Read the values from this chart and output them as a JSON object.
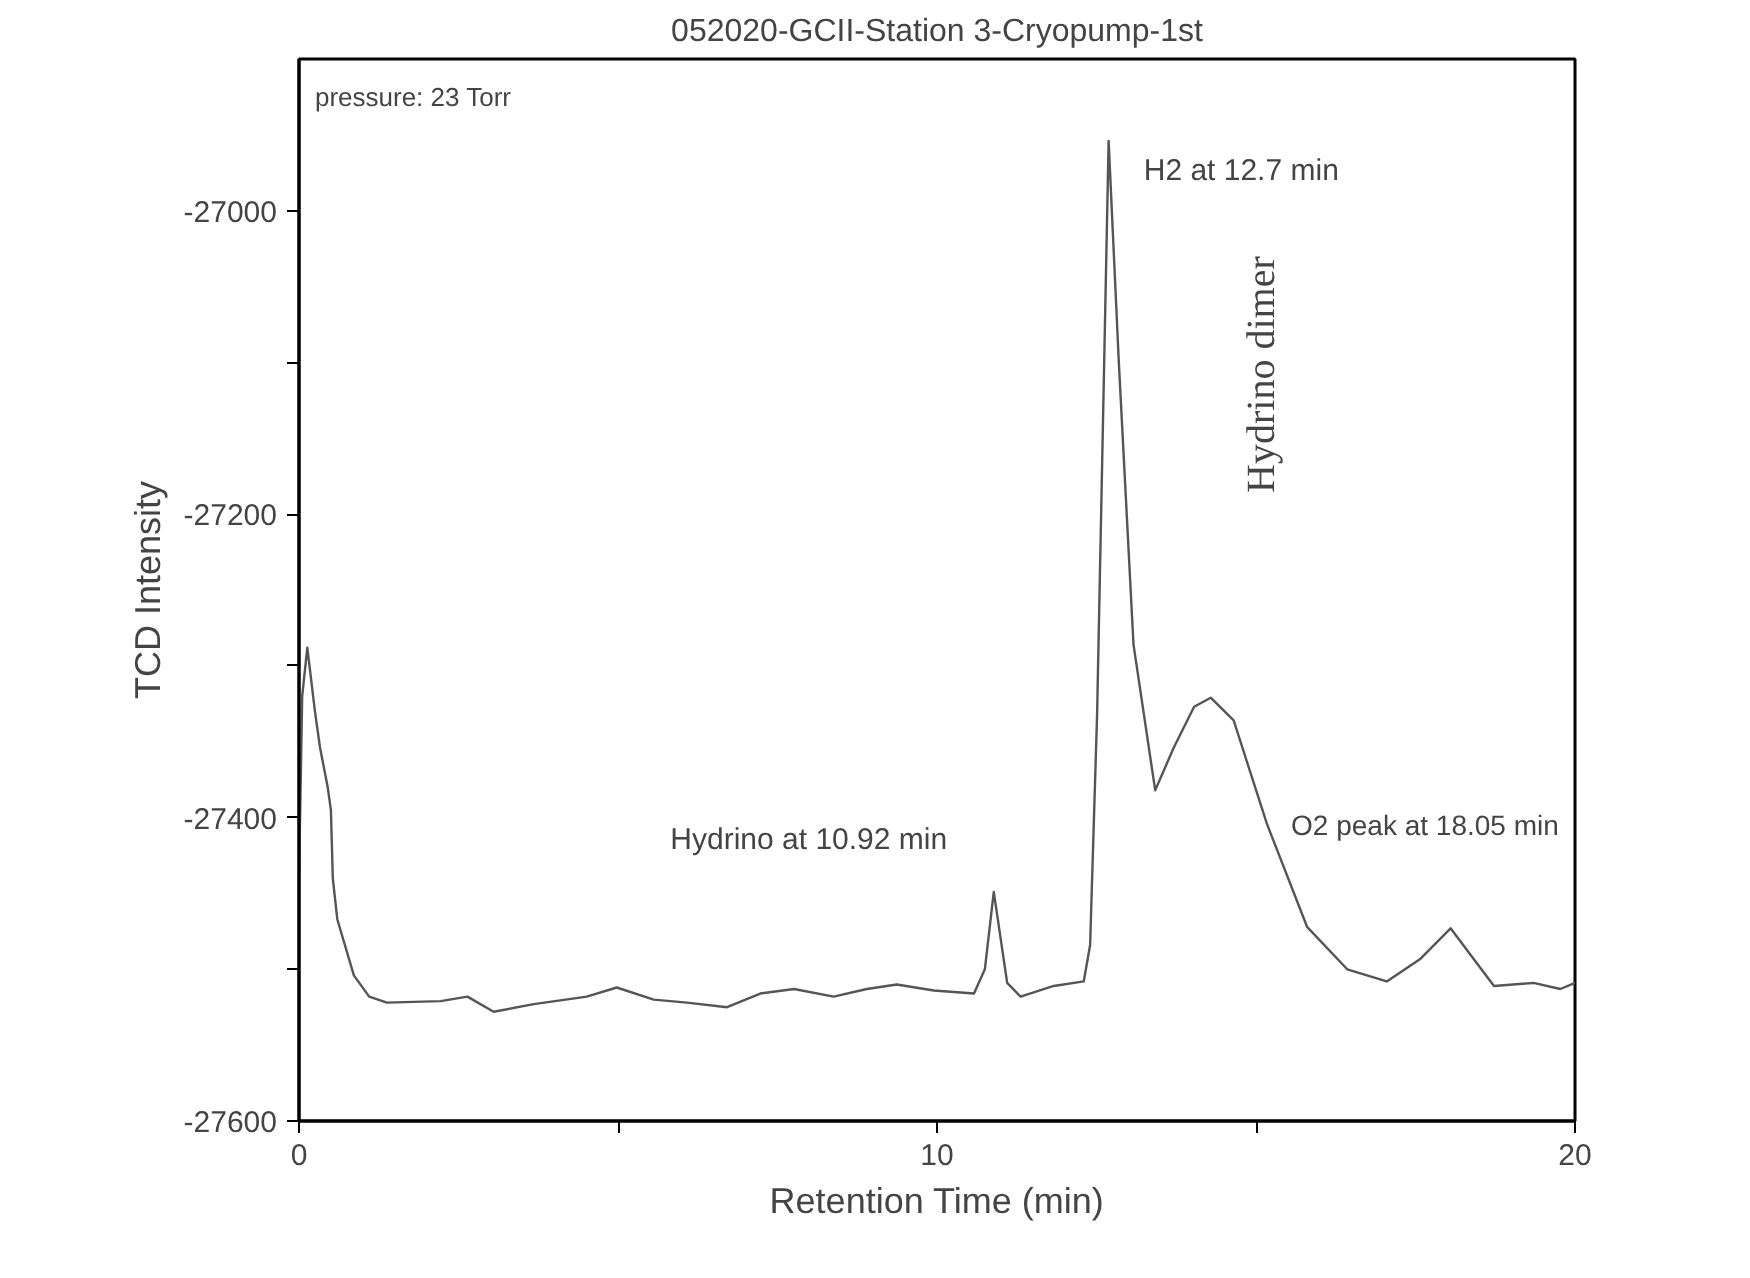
{
  "chart_data": {
    "type": "line",
    "title": "052020-GCII-Station 3-Cryopump-1st",
    "xlabel": "Retention Time (min)",
    "ylabel": "TCD Intensity",
    "xlim": [
      0,
      20
    ],
    "ylim": [
      -27600,
      -26900
    ],
    "xticks": [
      0,
      {
        "value": 5,
        "label": null
      },
      10,
      {
        "value": 15,
        "label": null
      },
      20
    ],
    "yticks": [
      -27600,
      {
        "value": -27500,
        "label": null
      },
      -27400,
      {
        "value": -27300,
        "label": null
      },
      -27200,
      {
        "value": -27100,
        "label": null
      },
      -27000
    ],
    "grid": false,
    "line_style": "solid",
    "marker": "none",
    "annotations": [
      "pressure: 23 Torr",
      "Hydrino at 10.92 min",
      "H2 at 12.7 min",
      "Hydrino dimer",
      "O2 peak at 18.05 min"
    ],
    "series": [
      {
        "color": "#555555",
        "x": [
          0,
          0.05,
          0.13,
          0.25,
          0.33,
          0.45,
          0.5,
          0.53,
          0.6,
          0.86,
          1.1,
          1.38,
          2.22,
          2.64,
          3.05,
          3.68,
          4.51,
          4.98,
          5.56,
          6.08,
          6.71,
          7.23,
          7.76,
          8.38,
          8.9,
          9.37,
          9.95,
          10.58,
          10.75,
          10.89,
          11.1,
          11.31,
          11.83,
          12.3,
          12.4,
          12.51,
          12.69,
          12.85,
          13.08,
          13.42,
          13.71,
          14.03,
          14.29,
          14.65,
          15.17,
          15.8,
          16.43,
          17.05,
          17.58,
          18.05,
          18.73,
          19.35,
          19.77,
          20
        ],
        "values": [
          -27440,
          -27320,
          -27288,
          -27330,
          -27354,
          -27380,
          -27395,
          -27440,
          -27467,
          -27504,
          -27518,
          -27522,
          -27521,
          -27518,
          -27528,
          -27523,
          -27518,
          -27512,
          -27520,
          -27522,
          -27525,
          -27516,
          -27513,
          -27518,
          -27513,
          -27510,
          -27514,
          -27516,
          -27500,
          -27449,
          -27509,
          -27518,
          -27511,
          -27508,
          -27484,
          -27331,
          -26954,
          -27100,
          -27286,
          -27382,
          -27354,
          -27327,
          -27321,
          -27336,
          -27404,
          -27472,
          -27500,
          -27508,
          -27493,
          -27473,
          -27511,
          -27509,
          -27513,
          -27509
        ]
      }
    ]
  }
}
